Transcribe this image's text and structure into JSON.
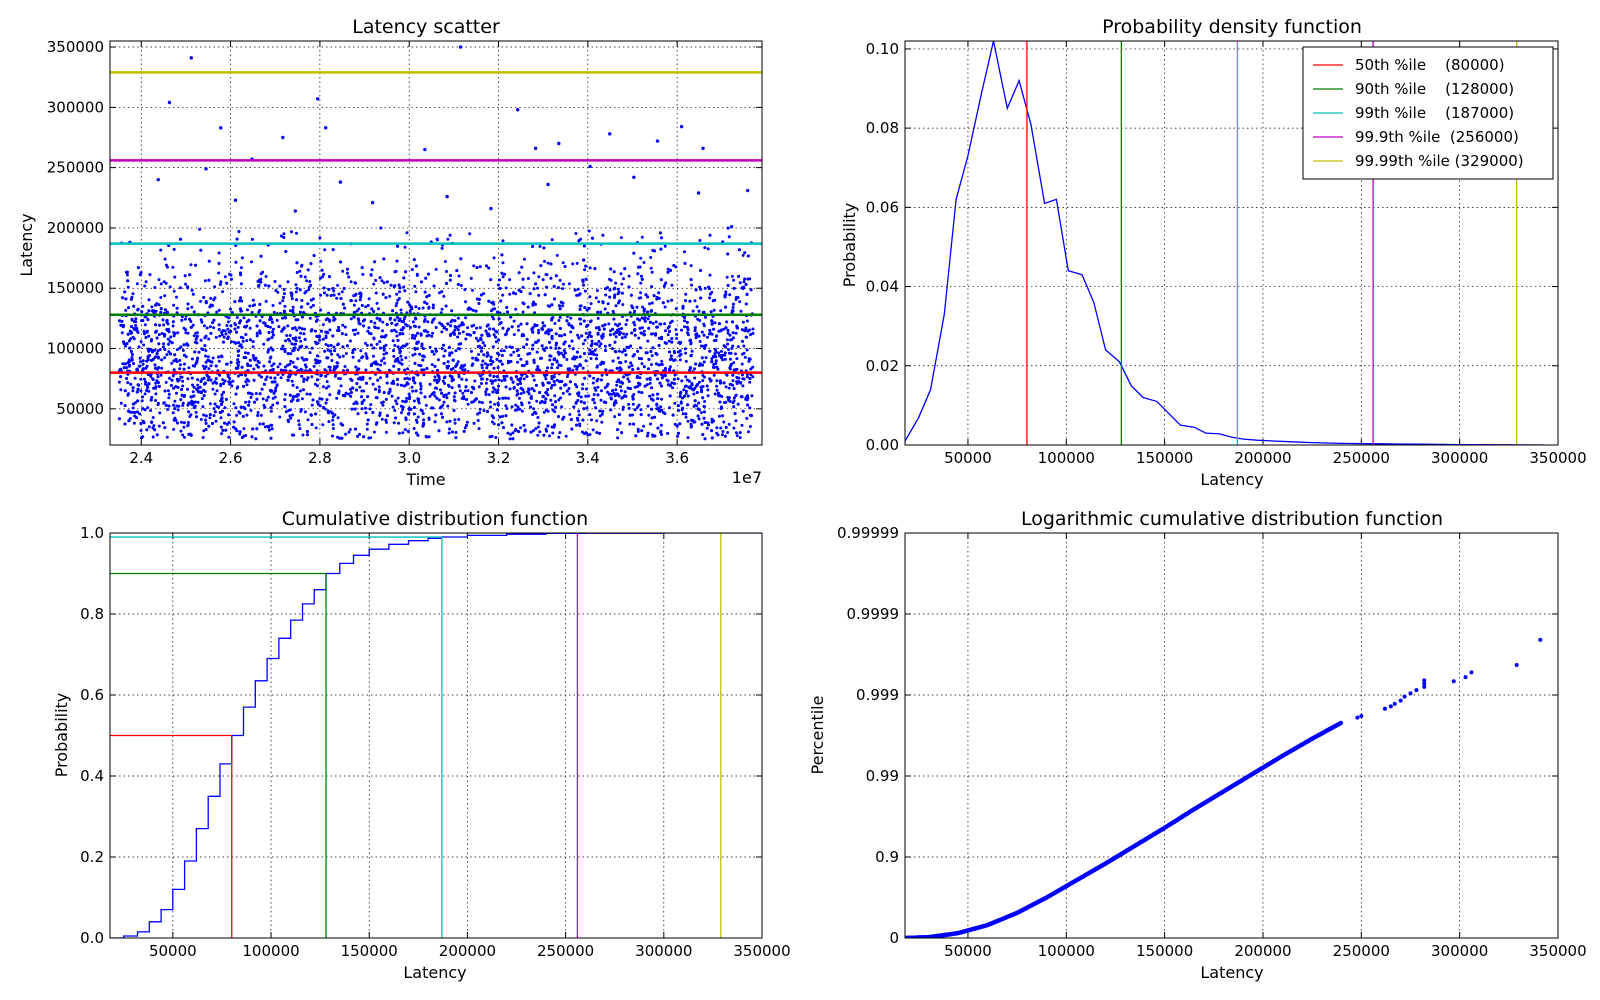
{
  "chart_data": [
    {
      "id": "scatter",
      "type": "scatter",
      "title": "Latency scatter",
      "xlabel": "Time",
      "ylabel": "Latency",
      "x_offset_label": "1e7",
      "xlim": [
        2.33,
        3.79
      ],
      "ylim": [
        20000,
        355000
      ],
      "xticks": [
        2.4,
        2.6,
        2.8,
        3.0,
        3.2,
        3.4,
        3.6
      ],
      "xtick_labels": [
        "2.4",
        "2.6",
        "2.8",
        "3.0",
        "3.2",
        "3.4",
        "3.6"
      ],
      "yticks": [
        50000,
        100000,
        150000,
        200000,
        250000,
        300000,
        350000
      ],
      "ytick_labels": [
        "50000",
        "100000",
        "150000",
        "200000",
        "250000",
        "300000",
        "350000"
      ],
      "grid": true,
      "point_color": "#0000ff",
      "points": [
        [
          2.512,
          341000
        ],
        [
          3.115,
          350000
        ],
        [
          2.463,
          304000
        ],
        [
          2.795,
          307000
        ],
        [
          3.243,
          298000
        ],
        [
          2.578,
          283000
        ],
        [
          2.813,
          283000
        ],
        [
          2.717,
          275000
        ],
        [
          3.035,
          265000
        ],
        [
          3.283,
          266000
        ],
        [
          3.335,
          270000
        ],
        [
          3.449,
          278000
        ],
        [
          3.556,
          272000
        ],
        [
          3.61,
          284000
        ],
        [
          3.658,
          266000
        ],
        [
          2.648,
          257000
        ],
        [
          3.405,
          251000
        ],
        [
          2.545,
          249000
        ],
        [
          3.758,
          231000
        ],
        [
          2.438,
          240000
        ],
        [
          2.611,
          223000
        ],
        [
          2.846,
          238000
        ],
        [
          3.085,
          226000
        ],
        [
          3.311,
          236000
        ],
        [
          3.503,
          242000
        ],
        [
          3.648,
          229000
        ],
        [
          2.745,
          214000
        ],
        [
          2.918,
          221000
        ],
        [
          3.183,
          216000
        ],
        [
          3.722,
          201000
        ]
      ],
      "dense_band_x": [
        2.35,
        3.77
      ],
      "dense_band_y": [
        25000,
        200000
      ],
      "percentile_lines": [
        {
          "label": "50th %ile",
          "value": 80000,
          "color": "#ff0000"
        },
        {
          "label": "90th %ile",
          "value": 128000,
          "color": "#008000"
        },
        {
          "label": "99th %ile",
          "value": 187000,
          "color": "#00bfbf"
        },
        {
          "label": "99.9th %ile",
          "value": 256000,
          "color": "#bf00bf"
        },
        {
          "label": "99.99th %ile",
          "value": 329000,
          "color": "#bfbf00"
        }
      ]
    },
    {
      "id": "pdf",
      "type": "line",
      "title": "Probability density function",
      "xlabel": "Latency",
      "ylabel": "Probability",
      "xlim": [
        18000,
        350000
      ],
      "ylim": [
        0,
        0.102
      ],
      "xticks": [
        50000,
        100000,
        150000,
        200000,
        250000,
        300000,
        350000
      ],
      "xtick_labels": [
        "50000",
        "100000",
        "150000",
        "200000",
        "250000",
        "300000",
        "350000"
      ],
      "yticks": [
        0,
        0.02,
        0.04,
        0.06,
        0.08,
        0.1
      ],
      "ytick_labels": [
        "0.00",
        "0.02",
        "0.04",
        "0.06",
        "0.08",
        "0.10"
      ],
      "grid": true,
      "legend_position": "top-right",
      "series_color": "#0000ff",
      "x": [
        18000,
        25000,
        31000,
        38000,
        44000,
        50000,
        57000,
        63000,
        70000,
        76000,
        82000,
        89000,
        95000,
        101000,
        108000,
        114000,
        120000,
        127000,
        133000,
        139000,
        146000,
        152000,
        158000,
        165000,
        171000,
        178000,
        184000,
        190000,
        197000,
        205000,
        215000,
        225000,
        240000,
        260000,
        280000,
        300000,
        320000,
        343000
      ],
      "y": [
        0.001,
        0.007,
        0.014,
        0.033,
        0.062,
        0.073,
        0.089,
        0.102,
        0.085,
        0.092,
        0.081,
        0.061,
        0.062,
        0.044,
        0.043,
        0.036,
        0.024,
        0.021,
        0.015,
        0.012,
        0.011,
        0.008,
        0.005,
        0.0045,
        0.003,
        0.0028,
        0.002,
        0.0015,
        0.0012,
        0.001,
        0.0008,
        0.0006,
        0.0004,
        0.0003,
        0.0002,
        0.0001,
        5e-05,
        0.0
      ],
      "percentile_lines": [
        {
          "label": "50th %ile",
          "value": 80000,
          "color": "#ff0000",
          "legend": "50th %ile    (80000)"
        },
        {
          "label": "90th %ile",
          "value": 128000,
          "color": "#008000",
          "legend": "90th %ile    (128000)"
        },
        {
          "label": "99th %ile",
          "value": 187000,
          "color": "#00bfbf",
          "legend": "99th %ile    (187000)"
        },
        {
          "label": "99.9th %ile",
          "value": 256000,
          "color": "#bf00bf",
          "legend": "99.9th %ile  (256000)"
        },
        {
          "label": "99.99th %ile",
          "value": 329000,
          "color": "#bfbf00",
          "legend": "99.99th %ile (329000)"
        }
      ]
    },
    {
      "id": "cdf",
      "type": "line",
      "title": "Cumulative distribution function",
      "xlabel": "Latency",
      "ylabel": "Probability",
      "xlim": [
        18000,
        350000
      ],
      "ylim": [
        0,
        1.0
      ],
      "xticks": [
        50000,
        100000,
        150000,
        200000,
        250000,
        300000,
        350000
      ],
      "xtick_labels": [
        "50000",
        "100000",
        "150000",
        "200000",
        "250000",
        "300000",
        "350000"
      ],
      "yticks": [
        0,
        0.2,
        0.4,
        0.6,
        0.8,
        1.0
      ],
      "ytick_labels": [
        "0.0",
        "0.2",
        "0.4",
        "0.6",
        "0.8",
        "1.0"
      ],
      "grid": true,
      "series_color": "#0000ff",
      "x": [
        18000,
        25000,
        32000,
        38000,
        44000,
        50000,
        56000,
        62000,
        68000,
        74000,
        80000,
        86000,
        92000,
        98000,
        104000,
        110000,
        116000,
        122000,
        128000,
        135000,
        142000,
        150000,
        160000,
        170000,
        180000,
        187000,
        200000,
        220000,
        240000,
        260000,
        300000,
        350000
      ],
      "y": [
        0.0,
        0.005,
        0.015,
        0.04,
        0.07,
        0.12,
        0.19,
        0.27,
        0.35,
        0.43,
        0.5,
        0.57,
        0.635,
        0.69,
        0.74,
        0.785,
        0.825,
        0.86,
        0.9,
        0.925,
        0.945,
        0.96,
        0.972,
        0.981,
        0.987,
        0.99,
        0.994,
        0.997,
        0.999,
        0.9995,
        0.9999,
        1.0
      ],
      "percentile_markers": [
        {
          "label": "50th %ile",
          "value": 80000,
          "prob": 0.5,
          "color": "#ff0000",
          "full_height": false
        },
        {
          "label": "90th %ile",
          "value": 128000,
          "prob": 0.9,
          "color": "#008000",
          "full_height": false
        },
        {
          "label": "99th %ile",
          "value": 187000,
          "prob": 0.99,
          "color": "#00bfbf",
          "full_height": false
        },
        {
          "label": "99.9th %ile",
          "value": 256000,
          "prob": 0.999,
          "color": "#bf00bf",
          "full_height": true
        },
        {
          "label": "99.99th %ile",
          "value": 329000,
          "prob": 0.9999,
          "color": "#bfbf00",
          "full_height": true
        }
      ]
    },
    {
      "id": "logcdf",
      "type": "scatter",
      "title": "Logarithmic cumulative distribution function",
      "xlabel": "Latency",
      "ylabel": "Percentile",
      "y_scale": "log-complement",
      "xlim": [
        18000,
        350000
      ],
      "ylim": [
        0,
        5
      ],
      "xticks": [
        50000,
        100000,
        150000,
        200000,
        250000,
        300000,
        350000
      ],
      "xtick_labels": [
        "50000",
        "100000",
        "150000",
        "200000",
        "250000",
        "300000",
        "350000"
      ],
      "yticks": [
        0,
        1,
        2,
        3,
        4,
        5
      ],
      "ytick_labels": [
        "0",
        "0.9",
        "0.99",
        "0.999",
        "0.9999",
        "0.99999"
      ],
      "grid": true,
      "point_color": "#0000ff",
      "curve_x": [
        18000,
        30000,
        45000,
        60000,
        75000,
        90000,
        105000,
        120000,
        135000,
        150000,
        165000,
        180000,
        195000,
        210000,
        225000,
        240000
      ],
      "curve_y": [
        0.0,
        0.01,
        0.06,
        0.16,
        0.31,
        0.5,
        0.71,
        0.92,
        1.14,
        1.36,
        1.59,
        1.81,
        2.03,
        2.25,
        2.46,
        2.66
      ],
      "tail_points": [
        [
          248000,
          2.72
        ],
        [
          250000,
          2.74
        ],
        [
          262000,
          2.83
        ],
        [
          265000,
          2.86
        ],
        [
          267000,
          2.89
        ],
        [
          270000,
          2.93
        ],
        [
          272000,
          2.98
        ],
        [
          275000,
          3.02
        ],
        [
          278000,
          3.06
        ],
        [
          282000,
          3.1
        ],
        [
          282000,
          3.14
        ],
        [
          282000,
          3.18
        ],
        [
          297000,
          3.17
        ],
        [
          303000,
          3.22
        ],
        [
          306000,
          3.28
        ],
        [
          329000,
          3.37
        ],
        [
          341000,
          3.68
        ]
      ]
    }
  ]
}
